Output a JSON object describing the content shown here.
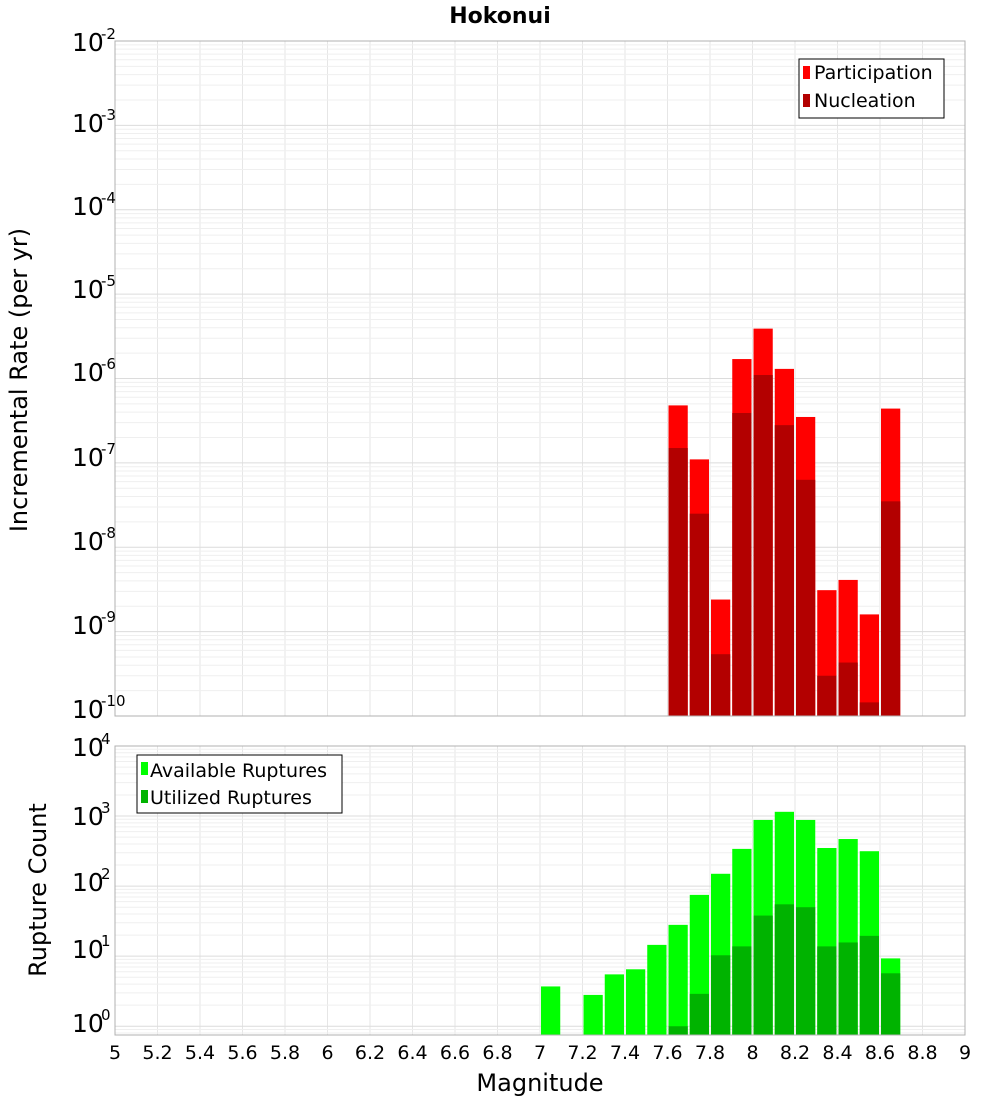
{
  "chart_data": [
    {
      "type": "bar",
      "title": "Hokonui",
      "ylabel": "Incremental Rate (per yr)",
      "xlabel": "",
      "xlim": [
        5,
        9
      ],
      "ylim": [
        1e-10,
        0.01
      ],
      "yscale": "log",
      "bar_width": 0.1,
      "grid": true,
      "legend_position": "top-right",
      "series": [
        {
          "name": "Participation",
          "color": "#ff0000",
          "x": [
            7.65,
            7.75,
            7.85,
            7.95,
            8.05,
            8.15,
            8.25,
            8.35,
            8.45,
            8.55,
            8.65
          ],
          "values": [
            4.8e-07,
            1.1e-07,
            2.4e-09,
            1.7e-06,
            3.9e-06,
            1.3e-06,
            3.5e-07,
            3.1e-09,
            4.1e-09,
            1.6e-09,
            4.4e-07
          ]
        },
        {
          "name": "Nucleation",
          "color": "#b30000",
          "x": [
            7.65,
            7.75,
            7.85,
            7.95,
            8.05,
            8.15,
            8.25,
            8.35,
            8.45,
            8.55,
            8.65
          ],
          "values": [
            1.5e-07,
            2.5e-08,
            5.4e-10,
            3.9e-07,
            1.1e-06,
            2.8e-07,
            6.3e-08,
            3e-10,
            4.3e-10,
            1.45e-10,
            3.5e-08
          ]
        }
      ],
      "yticks": [
        {
          "base": "10",
          "exp": "-2"
        },
        {
          "base": "10",
          "exp": "-3"
        },
        {
          "base": "10",
          "exp": "-4"
        },
        {
          "base": "10",
          "exp": "-5"
        },
        {
          "base": "10",
          "exp": "-6"
        },
        {
          "base": "10",
          "exp": "-7"
        },
        {
          "base": "10",
          "exp": "-8"
        },
        {
          "base": "10",
          "exp": "-9"
        },
        {
          "base": "10",
          "exp": "-10"
        }
      ]
    },
    {
      "type": "bar",
      "title": "",
      "ylabel": "Rupture Count",
      "xlabel": "Magnitude",
      "xlim": [
        5,
        9
      ],
      "ylim": [
        0.75,
        10000
      ],
      "yscale": "log",
      "bar_width": 0.1,
      "grid": true,
      "legend_position": "top-left",
      "series": [
        {
          "name": "Available Ruptures",
          "color": "#00ff00",
          "x": [
            7.05,
            7.25,
            7.35,
            7.45,
            7.55,
            7.65,
            7.75,
            7.85,
            7.95,
            8.05,
            8.15,
            8.25,
            8.35,
            8.45,
            8.55,
            8.65
          ],
          "values": [
            3.7,
            2.8,
            5.5,
            6.5,
            14.5,
            28,
            75,
            150,
            340,
            880,
            1150,
            880,
            350,
            470,
            315,
            9.3
          ]
        },
        {
          "name": "Utilized Ruptures",
          "color": "#00b300",
          "x": [
            7.65,
            7.75,
            7.85,
            7.95,
            8.05,
            8.15,
            8.25,
            8.35,
            8.45,
            8.55,
            8.65
          ],
          "values": [
            1.0,
            2.9,
            10.3,
            13.8,
            38,
            55,
            50,
            13.8,
            15.7,
            19.5,
            5.7
          ]
        }
      ],
      "yticks": [
        {
          "base": "10",
          "exp": "4"
        },
        {
          "base": "10",
          "exp": "3"
        },
        {
          "base": "10",
          "exp": "2"
        },
        {
          "base": "10",
          "exp": "1"
        },
        {
          "base": "10",
          "exp": "0"
        }
      ],
      "xticks": [
        "5",
        "5.2",
        "5.4",
        "5.6",
        "5.8",
        "6",
        "6.2",
        "6.4",
        "6.6",
        "6.8",
        "7",
        "7.2",
        "7.4",
        "7.6",
        "7.8",
        "8",
        "8.2",
        "8.4",
        "8.6",
        "8.8",
        "9"
      ]
    }
  ]
}
